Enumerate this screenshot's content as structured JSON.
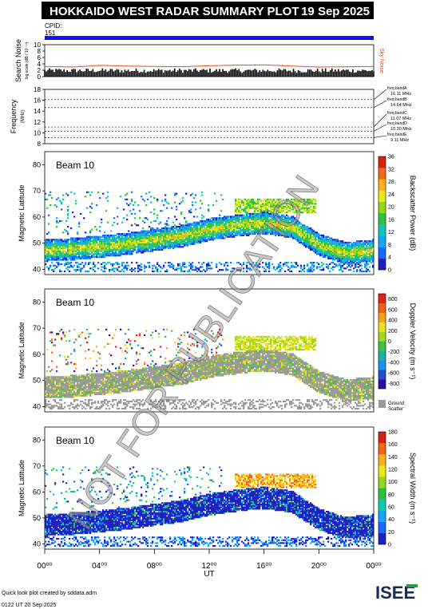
{
  "header": {
    "title": "HOKKAIDO WEST RADAR SUMMARY PLOT",
    "date": "19 Sep 2025",
    "cpid_label": "CPID:",
    "cpid_value": "151"
  },
  "colors": {
    "header_bg": "#000000",
    "cpid_bar": "#1010ff",
    "noise_trace": "#e05020",
    "watermark": "#9a9a9a"
  },
  "chart_data": [
    {
      "type": "line",
      "id": "search-noise",
      "ylabel": "Search Noise",
      "ylabel_sub": "log scale (dB / 10⁻¹ⁿ)",
      "ylim": [
        0,
        10
      ],
      "yticks": [
        0,
        2,
        4,
        6,
        8,
        10
      ],
      "xlim": [
        0,
        24
      ],
      "series": [
        {
          "name": "Sky Noise",
          "x": [
            0,
            2,
            4,
            6,
            8,
            10,
            12,
            14,
            16,
            18,
            20,
            22,
            24
          ],
          "values": [
            3.2,
            3.0,
            3.5,
            3.3,
            3.2,
            3.1,
            3.4,
            3.6,
            3.7,
            3.3,
            3.0,
            3.1,
            3.2
          ]
        }
      ]
    },
    {
      "type": "line",
      "id": "frequency",
      "ylabel": "Frequency",
      "ylabel_sub": "(MHz)",
      "ylim": [
        8,
        18
      ],
      "yticks": [
        8,
        10,
        12,
        14,
        16,
        18
      ],
      "xlim": [
        0,
        24
      ],
      "bands": [
        {
          "label": "freq bandA",
          "value_label": "16.11 MHz",
          "value": 16.11
        },
        {
          "label": "freq bandB",
          "value_label": "14.64 MHz",
          "value": 14.64
        },
        {
          "label": "freq bandC",
          "value_label": "11.07 MHz",
          "value": 11.07
        },
        {
          "label": "freq bandD",
          "value_label": "10.30 MHz",
          "value": 10.3
        },
        {
          "label": "freq bandE",
          "value_label": "9.11 MHz",
          "value": 9.11
        }
      ]
    },
    {
      "type": "heatmap",
      "id": "power",
      "label": "Beam 10",
      "ylabel": "Magnetic Latitude",
      "ylim": [
        38,
        85
      ],
      "yticks": [
        40,
        50,
        60,
        70,
        80
      ],
      "xlim": [
        0,
        24
      ],
      "colorbar": {
        "label": "Backscatter Power (dB)",
        "ticks": [
          "0",
          "4",
          "8",
          "12",
          "16",
          "20",
          "24",
          "28",
          "32",
          "36"
        ],
        "colors": [
          "#2020c0",
          "#1a66ff",
          "#12a8ff",
          "#12c8b0",
          "#30c040",
          "#90d820",
          "#e8e81c",
          "#ffb020",
          "#f06818",
          "#d82010"
        ]
      },
      "main_band": {
        "center": [
          47,
          47.5,
          48.5,
          49.5,
          51,
          52.5,
          55,
          56.5,
          57.5,
          56,
          49,
          46,
          47
        ],
        "width": 8
      },
      "upper_patch": {
        "x": [
          13.8,
          19.8
        ],
        "center": 64,
        "width": 5
      }
    },
    {
      "type": "heatmap",
      "id": "velocity",
      "label": "Beam 10",
      "ylabel": "Magnetic Latitude",
      "ylim": [
        38,
        85
      ],
      "yticks": [
        40,
        50,
        60,
        70,
        80
      ],
      "xlim": [
        0,
        24
      ],
      "colorbar": {
        "label": "Doppler Velocity (m s⁻¹)",
        "ticks": [
          "800",
          "600",
          "400",
          "200",
          "0",
          "-200",
          "-400",
          "-600",
          "-800"
        ],
        "colors": [
          "#3010a0",
          "#2050d0",
          "#2090f0",
          "#20b0a0",
          "#40c040",
          "#a0d820",
          "#e8e020",
          "#f8a020",
          "#f06018",
          "#e02010"
        ]
      },
      "ground_scatter_label": "Ground Scatter",
      "ground_scatter_color": "#9a9a9a"
    },
    {
      "type": "heatmap",
      "id": "width",
      "label": "Beam 10",
      "ylabel": "Magnetic Latitude",
      "ylim": [
        38,
        85
      ],
      "yticks": [
        40,
        50,
        60,
        70,
        80
      ],
      "xlim": [
        0,
        24
      ],
      "xlabel": "UT",
      "xticks": [
        "00⁰⁰",
        "04⁰⁰",
        "08⁰⁰",
        "12⁰⁰",
        "16⁰⁰",
        "20⁰⁰",
        "00⁰⁰"
      ],
      "colorbar": {
        "label": "Spectral Width (m s⁻¹)",
        "ticks": [
          "0",
          "20",
          "40",
          "60",
          "80",
          "100",
          "120",
          "140",
          "160",
          "180"
        ],
        "colors": [
          "#2020c0",
          "#1a66ff",
          "#12a8ff",
          "#12c8b0",
          "#30c040",
          "#90d820",
          "#e8e81c",
          "#ffb020",
          "#f06818",
          "#d82010"
        ]
      }
    }
  ],
  "footer": {
    "credit": "Quick look plot created by sddata.adm",
    "timestamp": "0122 UT 20 Sep 2025",
    "logo": "ISEE"
  },
  "watermark_text": "NOT FOR PUBLICATION"
}
